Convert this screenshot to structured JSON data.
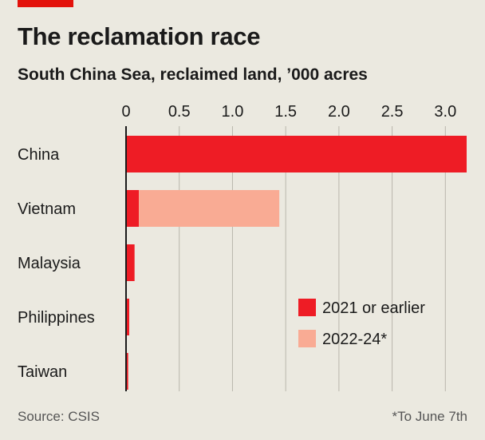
{
  "header": {
    "title": "The reclamation race",
    "subtitle": "South China Sea, reclaimed land, ’000 acres"
  },
  "footer": {
    "source": "Source: CSIS",
    "note": "*To June 7th"
  },
  "colors": {
    "accent": "#e3120b",
    "series_2021": "#ee1c25",
    "series_2022": "#f9ab94",
    "grid": "#b9b6ac",
    "axis": "#1a1a1a"
  },
  "chart_data": {
    "type": "bar",
    "orientation": "horizontal",
    "stacked": true,
    "categories": [
      "China",
      "Vietnam",
      "Malaysia",
      "Philippines",
      "Taiwan"
    ],
    "series": [
      {
        "name": "2021 or earlier",
        "values": [
          3.2,
          0.12,
          0.08,
          0.03,
          0.02
        ]
      },
      {
        "name": "2022-24*",
        "values": [
          0.0,
          1.32,
          0.0,
          0.0,
          0.0
        ]
      }
    ],
    "xlim": [
      0,
      3.2
    ],
    "xticks": [
      0,
      0.5,
      1.0,
      1.5,
      2.0,
      2.5,
      3.0
    ],
    "xtick_labels": [
      "0",
      "0.5",
      "1.0",
      "1.5",
      "2.0",
      "2.5",
      "3.0"
    ],
    "grid": true,
    "legend_position": "bottom-right"
  }
}
